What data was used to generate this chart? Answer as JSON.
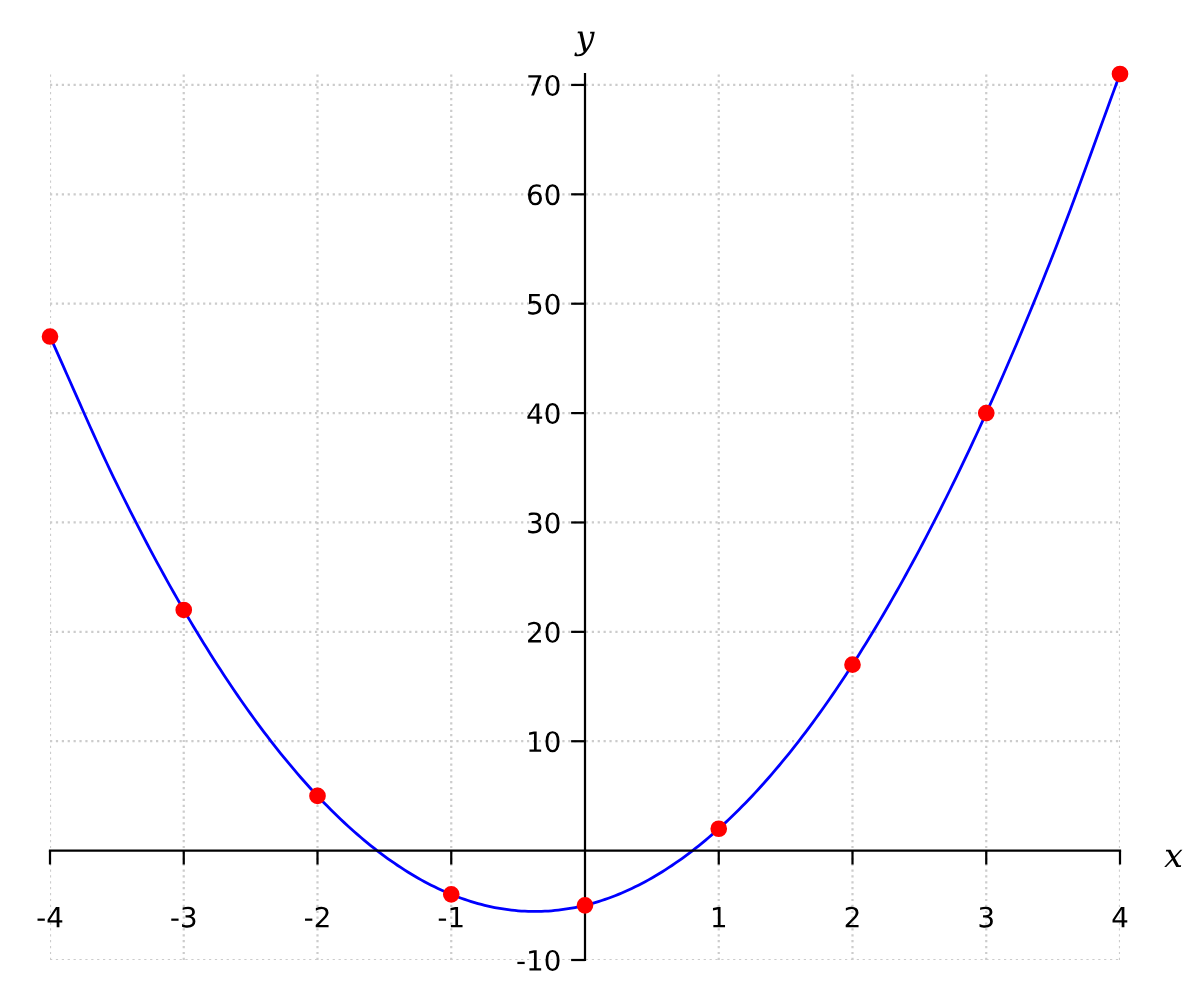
{
  "chart_data": {
    "type": "line",
    "xlabel": "x",
    "ylabel": "y",
    "xlim": [
      -4,
      4
    ],
    "ylim": [
      -10,
      71
    ],
    "xticks": [
      -4,
      -3,
      -2,
      -1,
      1,
      2,
      3,
      4
    ],
    "yticks": [
      -10,
      10,
      20,
      30,
      40,
      50,
      60,
      70
    ],
    "grid": true,
    "legend": false,
    "series": [
      {
        "color": "#0000ff",
        "marker": "none",
        "x": [
          -4,
          -3.5,
          -3,
          -2.5,
          -2,
          -1.5,
          -1,
          -0.5,
          0,
          0.5,
          1,
          1.5,
          2,
          2.5,
          3,
          3.5,
          4
        ],
        "values": [
          47,
          33.5,
          22,
          12.5,
          5,
          -0.5,
          -4,
          -5.5,
          -5,
          -2.5,
          2,
          8.5,
          17,
          27.5,
          40,
          54.5,
          71
        ]
      },
      {
        "type": "scatter",
        "color": "#ff0000",
        "marker": "circle",
        "x": [
          -4,
          -3,
          -2,
          -1,
          0,
          1,
          2,
          3,
          4
        ],
        "values": [
          47,
          22,
          5,
          -4,
          -5,
          2,
          17,
          40,
          71
        ]
      }
    ]
  }
}
